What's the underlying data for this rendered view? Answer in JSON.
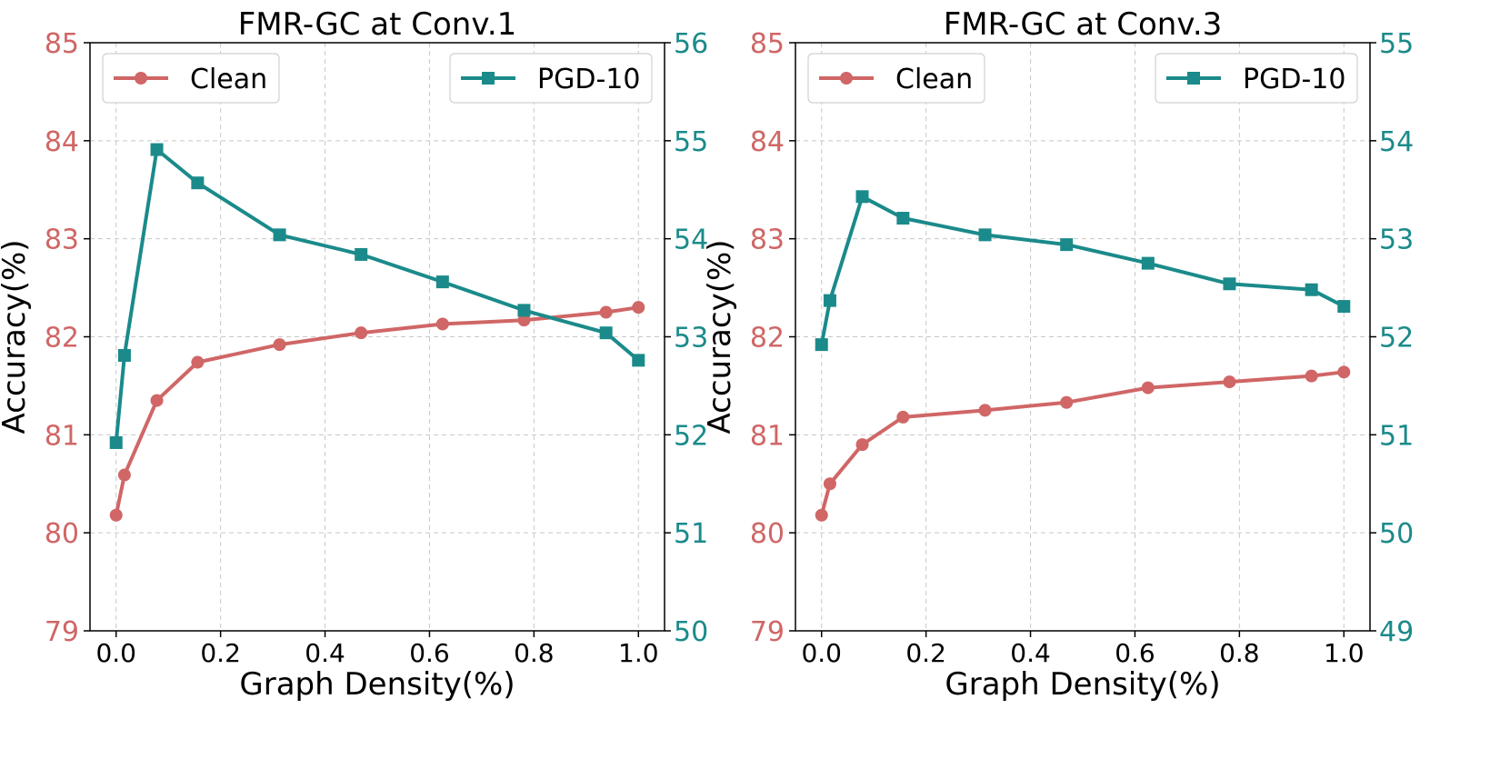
{
  "colors": {
    "clean": "#d06666",
    "pgd": "#1b8a8a",
    "grid": "#c8c8c8",
    "axis": "#000000"
  },
  "chart_data": [
    {
      "type": "line",
      "title": "FMR-GC at Conv.1",
      "xlabel": "Graph Density(%)",
      "ylabel": "Accuracy(%)",
      "x": [
        0.0,
        0.016,
        0.078,
        0.156,
        0.313,
        0.469,
        0.625,
        0.781,
        0.938,
        1.0
      ],
      "xlim": [
        -0.05,
        1.05
      ],
      "xticks": [
        "0.0",
        "0.2",
        "0.4",
        "0.6",
        "0.8",
        "1.0"
      ],
      "xtick_values": [
        0.0,
        0.2,
        0.4,
        0.6,
        0.8,
        1.0
      ],
      "ylim_left": [
        79,
        85
      ],
      "yticks_left": [
        "79",
        "80",
        "81",
        "82",
        "83",
        "84",
        "85"
      ],
      "ylim_right": [
        50,
        56
      ],
      "yticks_right": [
        "50",
        "51",
        "52",
        "53",
        "54",
        "55",
        "56"
      ],
      "grid": true,
      "series": [
        {
          "name": "Clean",
          "axis": "left",
          "marker": "circle",
          "values": [
            80.18,
            80.59,
            81.35,
            81.74,
            81.92,
            82.04,
            82.13,
            82.17,
            82.25,
            82.3
          ]
        },
        {
          "name": "PGD-10",
          "axis": "right",
          "marker": "square",
          "values": [
            51.92,
            52.81,
            54.91,
            54.57,
            54.04,
            53.84,
            53.56,
            53.27,
            53.04,
            52.76
          ]
        }
      ],
      "legend": [
        {
          "label": "Clean",
          "placement": "upper-left"
        },
        {
          "label": "PGD-10",
          "placement": "upper-right"
        }
      ]
    },
    {
      "type": "line",
      "title": "FMR-GC at Conv.3",
      "xlabel": "Graph Density(%)",
      "ylabel": "Accuracy(%)",
      "x": [
        0.0,
        0.016,
        0.078,
        0.156,
        0.313,
        0.469,
        0.625,
        0.781,
        0.938,
        1.0
      ],
      "xlim": [
        -0.05,
        1.05
      ],
      "xticks": [
        "0.0",
        "0.2",
        "0.4",
        "0.6",
        "0.8",
        "1.0"
      ],
      "xtick_values": [
        0.0,
        0.2,
        0.4,
        0.6,
        0.8,
        1.0
      ],
      "ylim_left": [
        79,
        85
      ],
      "yticks_left": [
        "79",
        "80",
        "81",
        "82",
        "83",
        "84",
        "85"
      ],
      "ylim_right": [
        49,
        55
      ],
      "yticks_right": [
        "49",
        "50",
        "51",
        "52",
        "53",
        "54",
        "55"
      ],
      "grid": true,
      "series": [
        {
          "name": "Clean",
          "axis": "left",
          "marker": "circle",
          "values": [
            80.18,
            80.5,
            80.9,
            81.18,
            81.25,
            81.33,
            81.48,
            81.54,
            81.6,
            81.64
          ]
        },
        {
          "name": "PGD-10",
          "axis": "right",
          "marker": "square",
          "values": [
            51.92,
            52.37,
            53.43,
            53.21,
            53.04,
            52.94,
            52.75,
            52.54,
            52.48,
            52.31
          ]
        }
      ],
      "legend": [
        {
          "label": "Clean",
          "placement": "upper-left"
        },
        {
          "label": "PGD-10",
          "placement": "upper-right"
        }
      ]
    }
  ]
}
